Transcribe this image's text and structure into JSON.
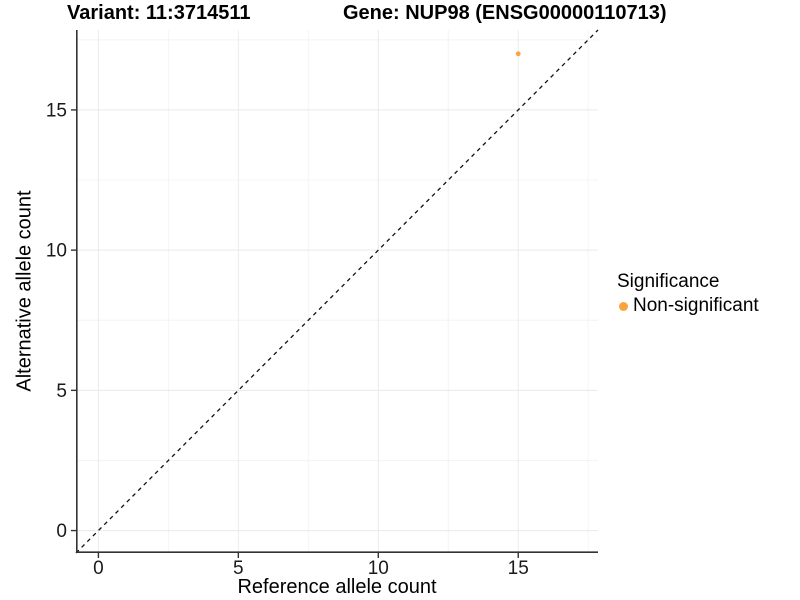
{
  "chart_data": {
    "type": "scatter",
    "title_left": "Variant: 11:3714511",
    "title_right": "Gene: NUP98 (ENSG00000110713)",
    "xlabel": "Reference allele count",
    "ylabel": "Alternative allele count",
    "xlim": [
      -0.8,
      17.85
    ],
    "ylim": [
      -0.8,
      17.85
    ],
    "x_ticks": [
      0,
      5,
      10,
      15
    ],
    "y_ticks": [
      0,
      5,
      10,
      15
    ],
    "x_minor_ticks": [
      2.5,
      7.5,
      12.5,
      17.5
    ],
    "y_minor_ticks": [
      2.5,
      7.5,
      12.5,
      17.5
    ],
    "grid": true,
    "points": [
      {
        "x": 15,
        "y": 17,
        "series": "Non-significant"
      }
    ],
    "abline": {
      "slope": 1,
      "intercept": 0,
      "style": "dashed"
    },
    "legend": {
      "title": "Significance",
      "position": "right",
      "items": [
        {
          "label": "Non-significant",
          "color": "#FCA43C"
        }
      ]
    },
    "colors": {
      "point": "#FCA43C",
      "abline": "#111111",
      "axis": "#333333",
      "tick_text": "#1a1a1a",
      "grid_major": "#EAEAEA",
      "grid_minor": "#F4F4F4"
    }
  }
}
